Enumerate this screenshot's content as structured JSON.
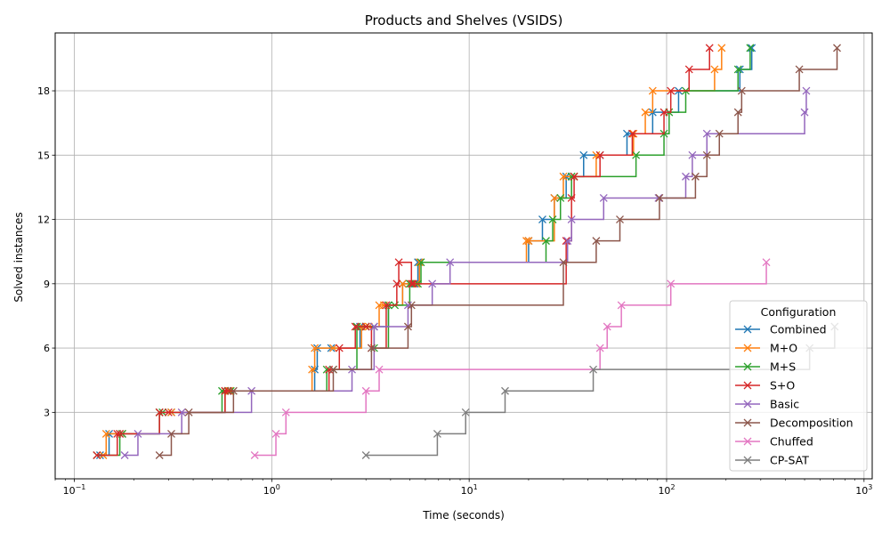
{
  "chart_data": {
    "type": "line",
    "title": "Products and Shelves (VSIDS)",
    "xlabel": "Time (seconds)",
    "ylabel": "Solved instances",
    "xscale": "log",
    "xlim": [
      0.08,
      1100
    ],
    "ylim": [
      -0.1,
      20.7
    ],
    "xticks": [
      {
        "value": 0.1,
        "base": "10",
        "exp": "−1"
      },
      {
        "value": 1,
        "base": "10",
        "exp": "0"
      },
      {
        "value": 10,
        "base": "10",
        "exp": "1"
      },
      {
        "value": 100,
        "base": "10",
        "exp": "2"
      },
      {
        "value": 1000,
        "base": "10",
        "exp": "3"
      }
    ],
    "yticks": [
      3,
      6,
      9,
      12,
      15,
      18
    ],
    "grid": true,
    "legend_title": "Configuration",
    "legend_position": "lower-right",
    "step": "post",
    "series": [
      {
        "name": "Combined",
        "color": "#1f77b4",
        "x": [
          0.135,
          0.15,
          0.175,
          0.27,
          0.31,
          0.58,
          0.6,
          1.65,
          1.7,
          2.0,
          2.8,
          3.0,
          3.3,
          3.9,
          4.6,
          5.3,
          5.5,
          20,
          23.5,
          27,
          31,
          38,
          46,
          63,
          85,
          115,
          235,
          270
        ],
        "y": [
          1,
          2,
          2,
          3,
          3,
          4,
          4,
          5,
          6,
          6,
          7,
          7,
          7,
          8,
          9,
          9,
          10,
          11,
          12,
          13,
          14,
          15,
          15,
          16,
          17,
          18,
          19,
          20
        ]
      },
      {
        "name": "M+O",
        "color": "#ff7f0e",
        "x": [
          0.14,
          0.145,
          0.175,
          0.27,
          0.31,
          0.58,
          0.61,
          1.6,
          1.65,
          2.05,
          2.85,
          3.1,
          3.5,
          3.7,
          4.6,
          5.4,
          5.6,
          19.5,
          20,
          27,
          30,
          34,
          44,
          68,
          78,
          85,
          175,
          190
        ],
        "y": [
          1,
          2,
          2,
          3,
          3,
          4,
          4,
          5,
          6,
          6,
          7,
          7,
          8,
          8,
          9,
          9,
          10,
          11,
          11,
          13,
          14,
          14,
          15,
          16,
          17,
          18,
          19,
          20
        ]
      },
      {
        "name": "M+S",
        "color": "#2ca02c",
        "x": [
          0.13,
          0.17,
          0.175,
          0.27,
          0.28,
          0.56,
          0.62,
          1.9,
          2.05,
          2.7,
          3.0,
          3.3,
          3.9,
          4.2,
          5.0,
          5.5,
          5.7,
          24.5,
          26.5,
          29,
          33,
          34,
          70,
          97,
          103,
          125,
          230,
          265
        ],
        "y": [
          1,
          2,
          2,
          3,
          3,
          4,
          4,
          5,
          5,
          7,
          7,
          6,
          8,
          8,
          9,
          9,
          10,
          11,
          12,
          13,
          14,
          14,
          15,
          16,
          17,
          18,
          19,
          20
        ]
      },
      {
        "name": "S+O",
        "color": "#d62728",
        "x": [
          0.13,
          0.165,
          0.17,
          0.27,
          0.3,
          0.58,
          0.6,
          1.95,
          2.2,
          2.65,
          3.0,
          3.2,
          3.8,
          4.3,
          4.4,
          5.1,
          5.2,
          31,
          33,
          34,
          46,
          67,
          97,
          105,
          130,
          165
        ],
        "y": [
          1,
          2,
          2,
          3,
          3,
          4,
          4,
          5,
          6,
          7,
          7,
          6,
          8,
          9,
          10,
          9,
          9,
          11,
          13,
          14,
          15,
          16,
          17,
          18,
          19,
          20
        ]
      },
      {
        "name": "Basic",
        "color": "#9467bd",
        "x": [
          0.18,
          0.21,
          0.35,
          0.79,
          2.55,
          3.3,
          4.9,
          6.5,
          8.0,
          31.5,
          33,
          48,
          91,
          125,
          135,
          160,
          500,
          510
        ],
        "y": [
          1,
          2,
          3,
          4,
          5,
          7,
          8,
          9,
          10,
          11,
          12,
          13,
          13,
          14,
          15,
          16,
          17,
          18
        ]
      },
      {
        "name": "Decomposition",
        "color": "#8c564b",
        "x": [
          0.27,
          0.31,
          0.38,
          0.64,
          2.05,
          3.2,
          4.9,
          5.1,
          30,
          44,
          58,
          92,
          140,
          160,
          185,
          230,
          240,
          470,
          730
        ],
        "y": [
          1,
          2,
          3,
          4,
          5,
          6,
          7,
          8,
          10,
          11,
          12,
          13,
          14,
          15,
          16,
          17,
          18,
          19,
          20
        ]
      },
      {
        "name": "Chuffed",
        "color": "#e377c2",
        "x": [
          0.82,
          1.05,
          1.18,
          3.0,
          3.5,
          46,
          50,
          59,
          105,
          320
        ],
        "y": [
          1,
          2,
          3,
          4,
          5,
          6,
          7,
          8,
          9,
          10
        ]
      },
      {
        "name": "CP-SAT",
        "color": "#7f7f7f",
        "x": [
          3.0,
          6.9,
          9.6,
          15.2,
          42.5,
          530,
          710
        ],
        "y": [
          1,
          2,
          3,
          4,
          5,
          6,
          7
        ]
      }
    ]
  }
}
